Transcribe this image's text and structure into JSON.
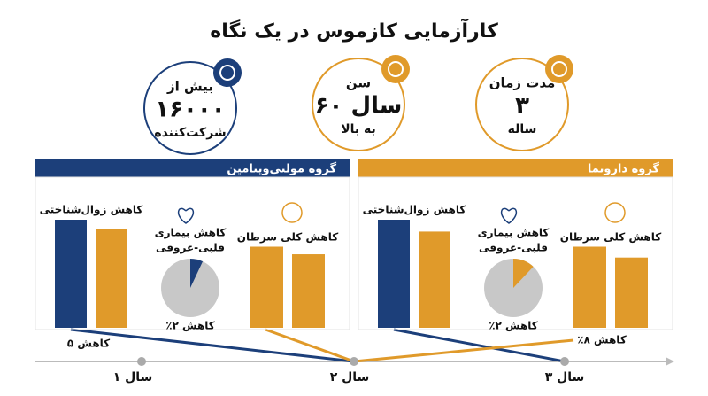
{
  "title": "کارآزمایی کازموس در یک نگاه",
  "stats": [
    {
      "lines": [
        "بیش از",
        "۱۶۰۰۰",
        "شرکت‌کننده"
      ],
      "color": "#1c3f7a"
    },
    {
      "lines": [
        "سن",
        "۶۰ سال",
        "به بالا"
      ],
      "color": "#e09a2a"
    },
    {
      "lines": [
        "مدت زمان",
        "۳",
        "ساله"
      ],
      "color": "#e09a2a"
    }
  ],
  "groups": [
    {
      "name": "گروه مولتی‌ویتامین",
      "color": "#1c3f7a",
      "cognitive": {
        "label": "کاهش زوال‌شناختی",
        "values": [
          100,
          91
        ],
        "colors": [
          "#1c3f7a",
          "#e09a2a"
        ]
      },
      "cardio": {
        "label": [
          "کاهش بیماری",
          "قلبی-عروقی"
        ],
        "note": "٪۲ کاهش",
        "slice": 7,
        "color": "#1c3f7a"
      },
      "cancer": {
        "label": "کاهش کلی سرطان",
        "values": [
          75,
          68
        ],
        "colors": [
          "#e09a2a",
          "#e09a2a"
        ]
      }
    },
    {
      "name": "گروه دارونما",
      "color": "#e09a2a",
      "cognitive": {
        "label": "کاهش زوال‌شناختی",
        "values": [
          100,
          89
        ],
        "colors": [
          "#1c3f7a",
          "#e09a2a"
        ]
      },
      "cardio": {
        "label": [
          "کاهش بیماری",
          "قلبی-عروقی"
        ],
        "note": "٪۲ کاهش",
        "slice": 12,
        "color": "#e09a2a"
      },
      "cancer": {
        "label": "کاهش کلی سرطان",
        "values": [
          75,
          65
        ],
        "colors": [
          "#e09a2a",
          "#e09a2a"
        ]
      }
    }
  ],
  "callouts": [
    "۵ کاهش",
    "٪۸ کاهش"
  ],
  "timeline": [
    "سال ۱",
    "سال ۲",
    "سال ۳"
  ]
}
